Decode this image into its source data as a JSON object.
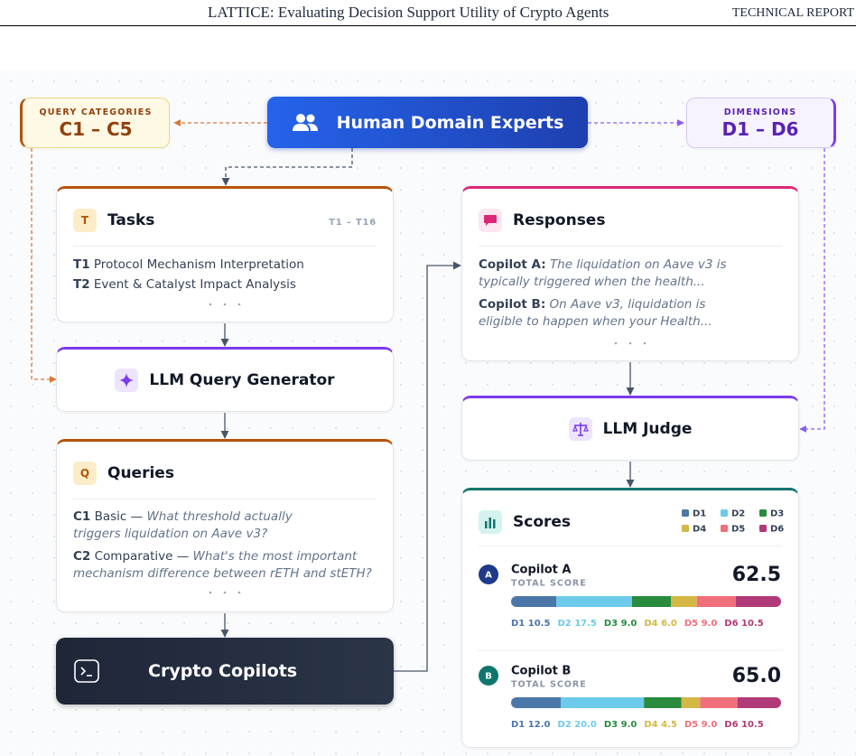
{
  "header": {
    "title": "LATTICE: Evaluating Decision Support Utility of Crypto Agents",
    "report": "TECHNICAL REPORT"
  },
  "query_categories": {
    "label": "QUERY CATEGORIES",
    "range": "C1 – C5"
  },
  "experts": "Human Domain Experts",
  "dimensions": {
    "label": "DIMENSIONS",
    "range": "D1 – D6"
  },
  "tasks": {
    "icon": "T",
    "title": "Tasks",
    "range": "T1 – T16",
    "items": [
      {
        "id": "T1",
        "text": "Protocol Mechanism Interpretation"
      },
      {
        "id": "T2",
        "text": "Event & Catalyst Impact Analysis"
      }
    ]
  },
  "query_generator": "LLM Query Generator",
  "queries": {
    "icon": "Q",
    "title": "Queries",
    "items": [
      {
        "id": "C1",
        "label": "Basic —",
        "text": "What threshold actually triggers liquidation on Aave v3?"
      },
      {
        "id": "C2",
        "label": "Comparative —",
        "text": "What's the most important mechanism difference between rETH and stETH?"
      }
    ]
  },
  "copilots": "Crypto Copilots",
  "responses": {
    "title": "Responses",
    "items": [
      {
        "name": "Copilot A:",
        "text": "The liquidation on Aave v3 is typically triggered when the health..."
      },
      {
        "name": "Copilot B:",
        "text": "On Aave v3, liquidation is eligible to happen when your Health..."
      }
    ]
  },
  "judge": "LLM Judge",
  "scores": {
    "title": "Scores",
    "dims": [
      "D1",
      "D2",
      "D3",
      "D4",
      "D5",
      "D6"
    ],
    "colors": [
      "#4a77a8",
      "#6ccbea",
      "#2a8a3e",
      "#d4b845",
      "#ef6f7a",
      "#b03a78"
    ],
    "copilots": [
      {
        "badge": "A",
        "badge_color": "#1e3a8a",
        "name": "Copilot A",
        "subtitle": "TOTAL SCORE",
        "total": 62.5,
        "total_label": "62.5",
        "values": [
          10.5,
          17.5,
          9,
          6,
          9,
          10.5
        ],
        "value_labels": [
          "10.5",
          "17.5",
          "9.0",
          "6.0",
          "9.0",
          "10.5"
        ]
      },
      {
        "badge": "B",
        "badge_color": "#0f766e",
        "name": "Copilot B",
        "subtitle": "TOTAL SCORE",
        "total": 65,
        "total_label": "65.0",
        "values": [
          12,
          20,
          9,
          4.5,
          9,
          10.5
        ],
        "value_labels": [
          "12.0",
          "20.0",
          "9.0",
          "4.5",
          "9.0",
          "10.5"
        ]
      }
    ]
  }
}
